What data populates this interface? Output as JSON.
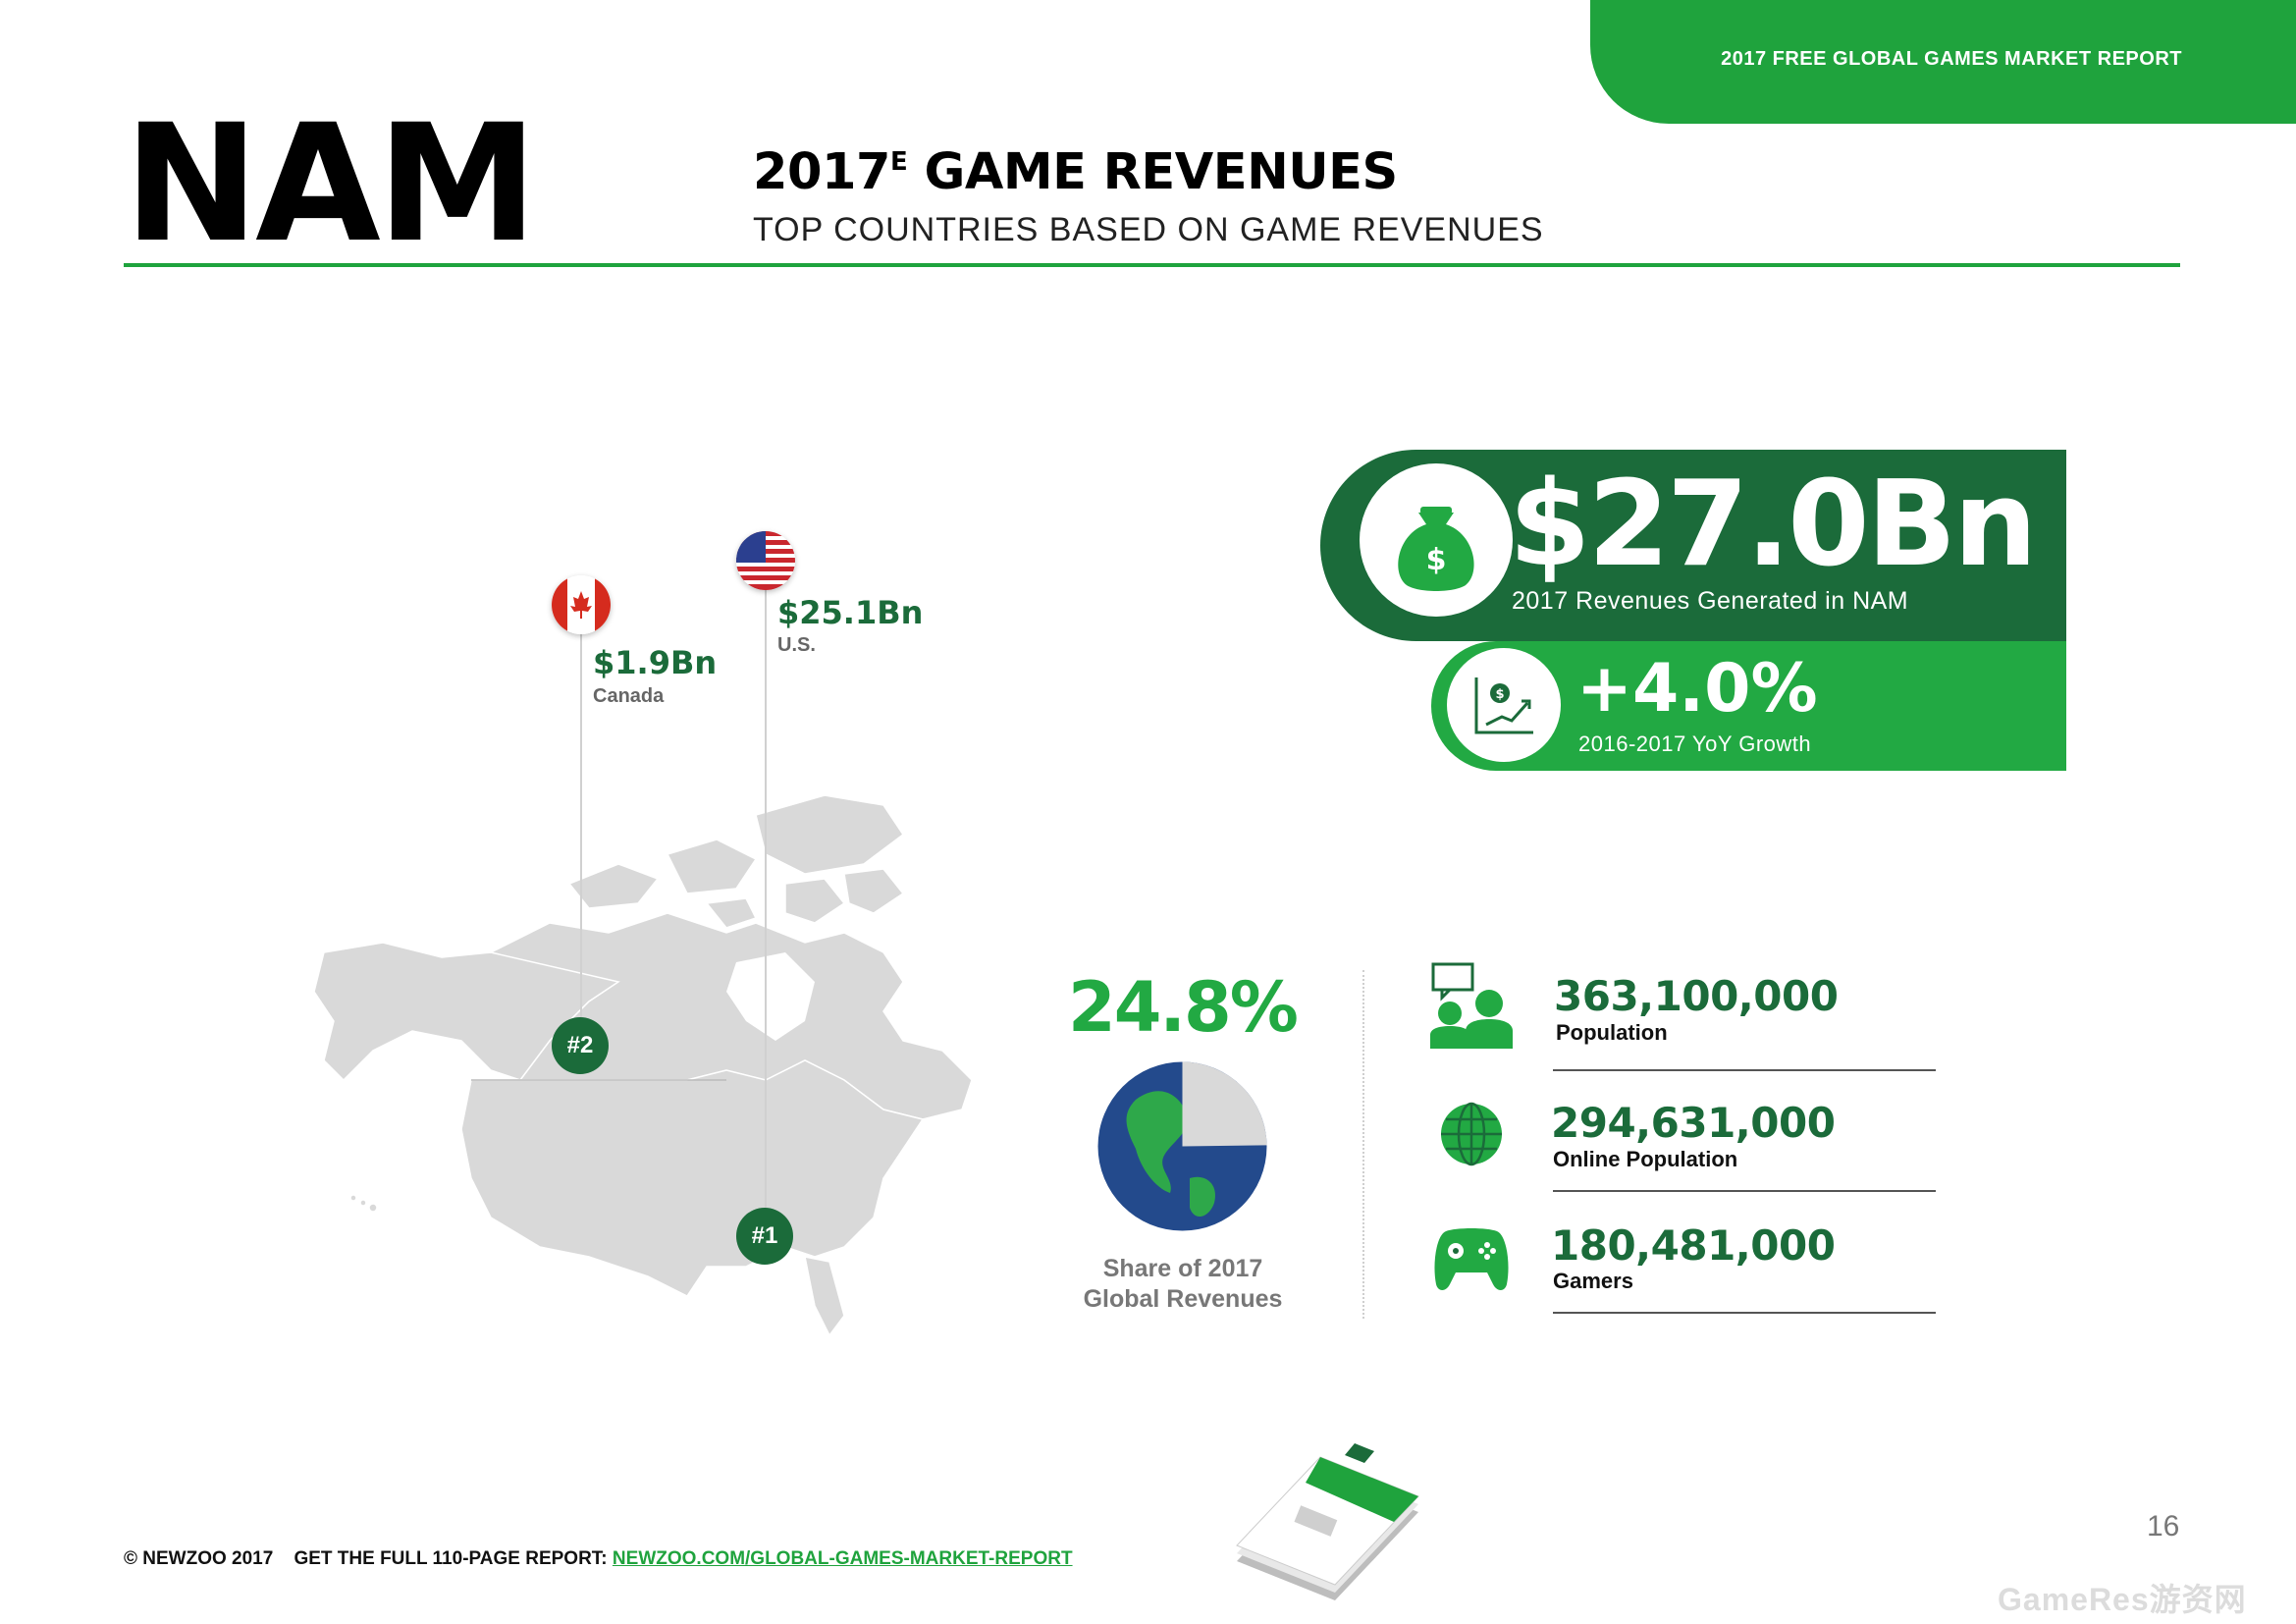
{
  "banner": "2017 FREE GLOBAL GAMES MARKET REPORT",
  "region": "NAM",
  "title": {
    "year": "2017",
    "superscript": "E",
    "text": "GAME REVENUES",
    "subtitle": "TOP COUNTRIES BASED ON GAME REVENUES"
  },
  "countries": [
    {
      "rank": "#1",
      "value": "$25.1Bn",
      "name": "U.S."
    },
    {
      "rank": "#2",
      "value": "$1.9Bn",
      "name": "Canada"
    }
  ],
  "revenue": {
    "value": "$27.0Bn",
    "label": "2017 Revenues Generated in NAM",
    "icon": "money-bag-icon"
  },
  "growth": {
    "value": "+4.0%",
    "label": "2016-2017 YoY Growth",
    "icon": "growth-chart-icon"
  },
  "share": {
    "value": "24.8%",
    "label_line1": "Share of 2017",
    "label_line2": "Global Revenues",
    "fraction": 0.248
  },
  "stats": [
    {
      "value": "363,100,000",
      "label": "Population",
      "icon": "population-icon"
    },
    {
      "value": "294,631,000",
      "label": "Online Population",
      "icon": "globe-icon"
    },
    {
      "value": "180,481,000",
      "label": "Gamers",
      "icon": "gamepad-icon"
    }
  ],
  "footer": {
    "copyright": "© NEWZOO 2017",
    "cta": "GET THE FULL 110-PAGE REPORT:",
    "link": "NEWZOO.COM/GLOBAL-GAMES-MARKET-REPORT"
  },
  "page_number": "16",
  "watermark": "GameRes游资网",
  "colors": {
    "dark_green": "#1b6b3a",
    "green": "#22a943",
    "map_gray": "#d9d9d9"
  }
}
